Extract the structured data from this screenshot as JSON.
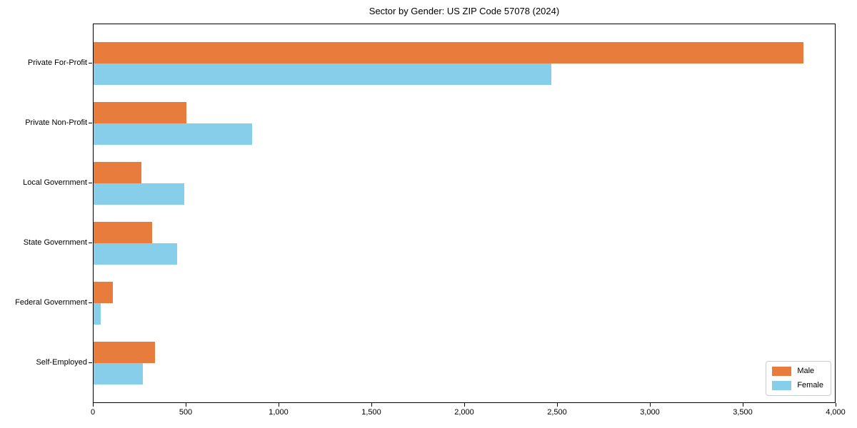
{
  "chart_data": {
    "type": "bar",
    "orientation": "horizontal",
    "title": "Sector by Gender: US ZIP Code 57078 (2024)",
    "categories": [
      "Private For-Profit",
      "Private Non-Profit",
      "Local Government",
      "State Government",
      "Federal Government",
      "Self-Employed"
    ],
    "series": [
      {
        "name": "Male",
        "color": "#e87c3c",
        "values": [
          3830,
          500,
          260,
          315,
          105,
          330
        ]
      },
      {
        "name": "Female",
        "color": "#87ceeb",
        "values": [
          2470,
          855,
          490,
          450,
          40,
          265
        ]
      }
    ],
    "xlim": [
      0,
      4000
    ],
    "x_ticks": [
      0,
      500,
      1000,
      1500,
      2000,
      2500,
      3000,
      3500,
      4000
    ],
    "x_tick_labels": [
      "0",
      "500",
      "1,000",
      "1,500",
      "2,000",
      "2,500",
      "3,000",
      "3,500",
      "4,000"
    ],
    "xlabel": "",
    "ylabel": "",
    "grid": false,
    "legend_position": "lower right"
  }
}
